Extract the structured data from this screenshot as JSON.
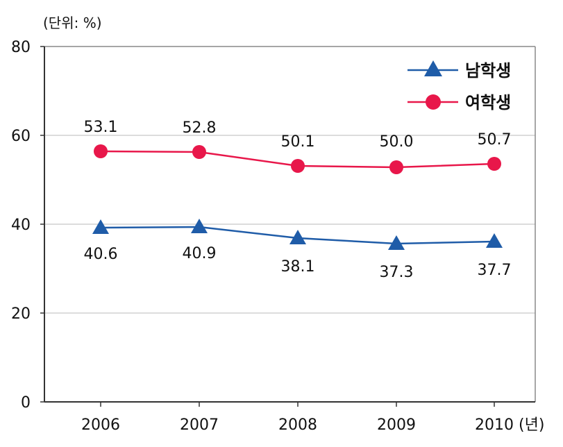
{
  "chart_data": {
    "type": "line",
    "unit_label": "(단위: %)",
    "x_unit": "(년)",
    "categories": [
      "2006",
      "2007",
      "2008",
      "2009",
      "2010"
    ],
    "ylim": [
      0,
      80
    ],
    "y_ticks": [
      "0",
      "20",
      "40",
      "60",
      "80"
    ],
    "grid": true,
    "legend_position": "top-right",
    "series": [
      {
        "name": "남학생",
        "marker": "triangle",
        "color": "#1f5ca8",
        "values": [
          40.6,
          40.9,
          38.1,
          37.3,
          37.7
        ],
        "labels": [
          "40.6",
          "40.9",
          "38.1",
          "37.3",
          "37.7"
        ]
      },
      {
        "name": "여학생",
        "marker": "circle",
        "color": "#e8174a",
        "values": [
          53.1,
          52.8,
          50.1,
          50.0,
          50.7
        ],
        "labels": [
          "53.1",
          "52.8",
          "50.1",
          "50.0",
          "50.7"
        ]
      }
    ]
  }
}
